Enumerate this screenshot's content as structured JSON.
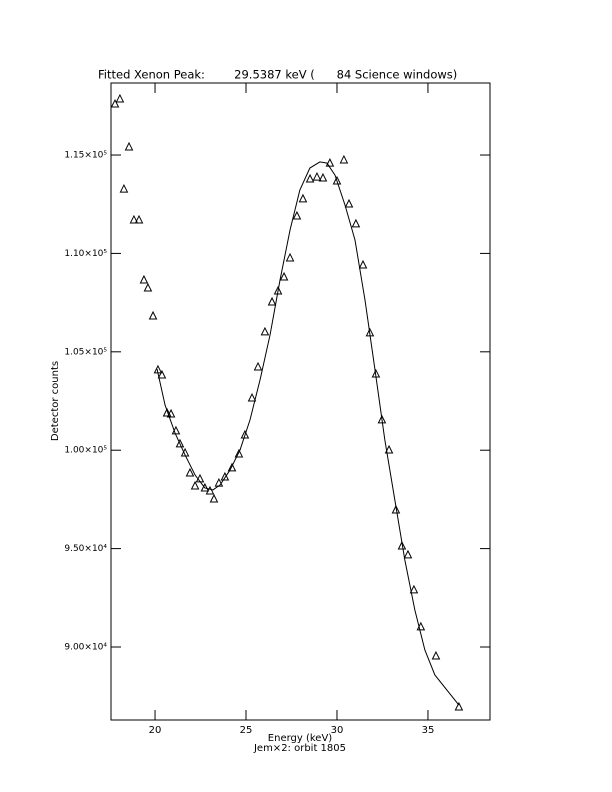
{
  "chart_data": {
    "type": "scatter",
    "title": "Fitted Xenon Peak:        29.5387 keV (      84 Science windows)",
    "x_label": "Energy (keV)",
    "subtitle": "Jem×2: orbit 1805",
    "y_label": "Detector counts",
    "xlim": [
      17.58,
      38.41
    ],
    "ylim": [
      86290,
      118660
    ],
    "xticks": [
      20,
      25,
      30,
      35
    ],
    "yticks": [
      {
        "value": 90000,
        "label": "9.00×10⁴"
      },
      {
        "value": 95000,
        "label": "9.50×10⁴"
      },
      {
        "value": 100000,
        "label": "1.00×10⁵"
      },
      {
        "value": 105000,
        "label": "1.05×10⁵"
      },
      {
        "value": 110000,
        "label": "1.10×10⁵"
      },
      {
        "value": 115000,
        "label": "1.15×10⁵"
      }
    ],
    "color": "#000000",
    "series": [
      {
        "marker": "triangle",
        "x": [
          17.8,
          18.07,
          18.29,
          18.57,
          18.84,
          19.12,
          19.39,
          19.61,
          19.89,
          20.16,
          20.38,
          20.66,
          20.88,
          21.15,
          21.37,
          21.65,
          21.92,
          22.2,
          22.47,
          22.74,
          23.02,
          23.24,
          23.51,
          23.84,
          24.23,
          24.61,
          24.94,
          25.33,
          25.66,
          26.04,
          26.43,
          26.76,
          27.09,
          27.42,
          27.8,
          28.13,
          28.52,
          28.9,
          29.23,
          29.61,
          30.0,
          30.38,
          30.66,
          31.04,
          31.43,
          31.81,
          32.14,
          32.47,
          32.86,
          33.24,
          33.57,
          33.9,
          34.23,
          34.61,
          35.44,
          36.7
        ],
        "values": [
          117590,
          117850,
          113270,
          115410,
          111700,
          111700,
          108650,
          108240,
          106820,
          104080,
          103820,
          101890,
          101840,
          100980,
          100320,
          99860,
          98840,
          98180,
          98540,
          98080,
          97930,
          97520,
          98330,
          98640,
          99100,
          99810,
          100770,
          102650,
          104230,
          106010,
          107530,
          108090,
          108800,
          109770,
          111900,
          112770,
          113780,
          113880,
          113830,
          114590,
          113680,
          114750,
          112510,
          111500,
          109410,
          105960,
          103870,
          101540,
          100010,
          96960,
          95130,
          94680,
          92900,
          91020,
          89540,
          86950
        ]
      },
      {
        "marker": "line",
        "x": [
          20.11,
          20.55,
          21.1,
          21.65,
          22.2,
          22.74,
          23.18,
          23.57,
          24.12,
          24.67,
          25.22,
          25.77,
          26.32,
          26.87,
          27.42,
          27.96,
          28.51,
          29.06,
          29.45,
          29.89,
          30.44,
          30.99,
          31.54,
          32.09,
          32.63,
          33.18,
          33.73,
          34.28,
          34.83,
          35.38,
          36.7
        ],
        "values": [
          104130,
          102300,
          100870,
          99760,
          98740,
          98080,
          97980,
          98230,
          98990,
          100010,
          101540,
          103570,
          105850,
          108650,
          111190,
          113220,
          114340,
          114650,
          114590,
          113980,
          112460,
          110680,
          107630,
          104080,
          100520,
          97470,
          94420,
          91880,
          89850,
          88580,
          87050
        ]
      }
    ]
  }
}
